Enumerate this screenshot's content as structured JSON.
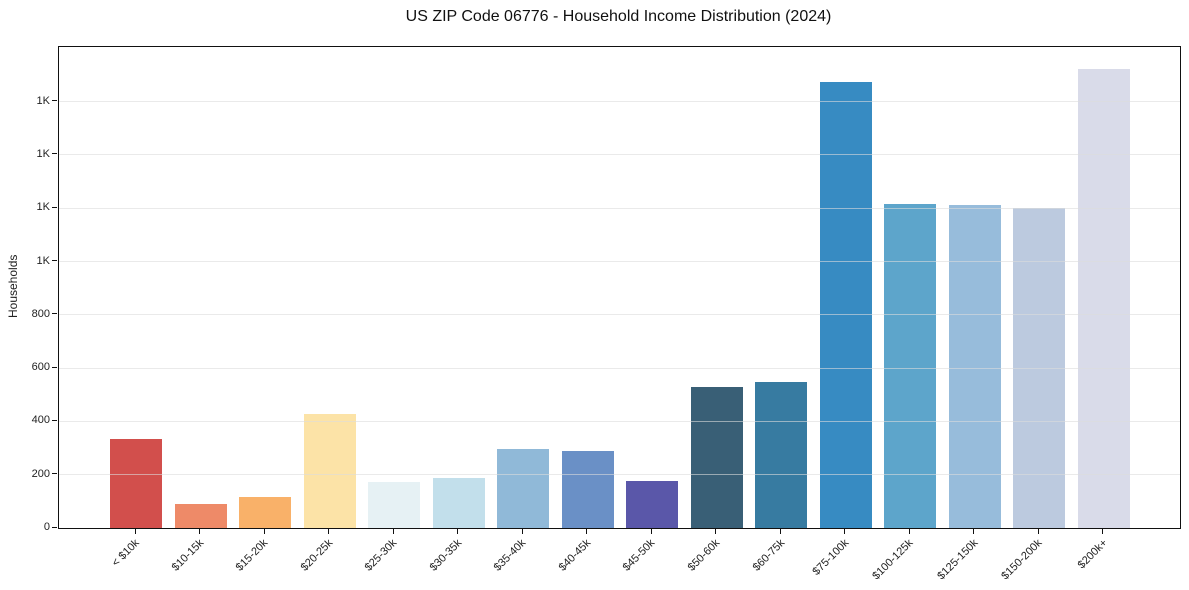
{
  "figure": {
    "kind": "static-bar-chart"
  },
  "chart_data": {
    "type": "bar",
    "title": "US ZIP Code 06776 - Household Income Distribution (2024)",
    "xlabel": "",
    "ylabel": "Households",
    "categories": [
      "< $10k",
      "$10-15k",
      "$15-20k",
      "$20-25k",
      "$25-30k",
      "$30-35k",
      "$35-40k",
      "$40-45k",
      "$45-50k",
      "$50-60k",
      "$60-75k",
      "$75-100k",
      "$100-125k",
      "$125-150k",
      "$150-200k",
      "$200k+"
    ],
    "values": [
      335,
      91,
      117,
      426,
      172,
      189,
      296,
      288,
      177,
      530,
      549,
      1674,
      1216,
      1212,
      1201,
      1721
    ],
    "bar_colors": [
      "#d24f4c",
      "#ee8a68",
      "#f9b169",
      "#fce3a7",
      "#e6f1f4",
      "#c2dfeb",
      "#90b9d8",
      "#6a90c6",
      "#5a57a9",
      "#395f76",
      "#377ba1",
      "#378bc2",
      "#5da5cb",
      "#97bcdb",
      "#bccadf",
      "#d9dbe9"
    ],
    "ylim": [
      0,
      1805
    ],
    "y_ticks": [
      {
        "value": 0,
        "label": "0"
      },
      {
        "value": 200,
        "label": "200"
      },
      {
        "value": 400,
        "label": "400"
      },
      {
        "value": 600,
        "label": "600"
      },
      {
        "value": 800,
        "label": "800"
      },
      {
        "value": 1000,
        "label": "1K"
      },
      {
        "value": 1200,
        "label": "1K"
      },
      {
        "value": 1400,
        "label": "1K"
      },
      {
        "value": 1600,
        "label": "1K"
      }
    ],
    "grid": "horizontal-light",
    "legend": "none"
  }
}
